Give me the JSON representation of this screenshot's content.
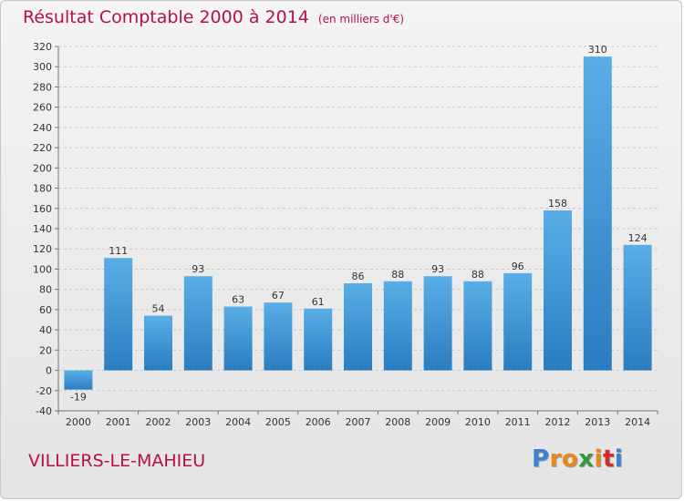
{
  "chart_data": {
    "type": "bar",
    "title": "Résultat Comptable 2000 à 2014",
    "subtitle": "(en milliers d'€)",
    "categories": [
      "2000",
      "2001",
      "2002",
      "2003",
      "2004",
      "2005",
      "2006",
      "2007",
      "2008",
      "2009",
      "2010",
      "2011",
      "2012",
      "2013",
      "2014"
    ],
    "values": [
      -19,
      111,
      54,
      93,
      63,
      67,
      61,
      86,
      88,
      93,
      88,
      96,
      158,
      310,
      124
    ],
    "ylim": [
      -40,
      320
    ],
    "yticks": [
      -40,
      -20,
      0,
      20,
      40,
      60,
      80,
      100,
      120,
      140,
      160,
      180,
      200,
      220,
      240,
      260,
      280,
      300,
      320
    ],
    "grid": "horizontal dashed",
    "bar_color_top": "#5aaee6",
    "bar_color_bottom": "#2a7dc0",
    "title_color": "#b5104a"
  },
  "footer": {
    "commune": "VILLIERS-LE-MAHIEU",
    "logo_letters": [
      "P",
      "r",
      "o",
      "x",
      "i",
      "t",
      "i"
    ],
    "logo_colors": [
      "#3d7fd1",
      "#e8891a",
      "#e8891a",
      "#2f9b3c",
      "#e8891a",
      "#d42a2a",
      "#3d7fd1"
    ]
  }
}
